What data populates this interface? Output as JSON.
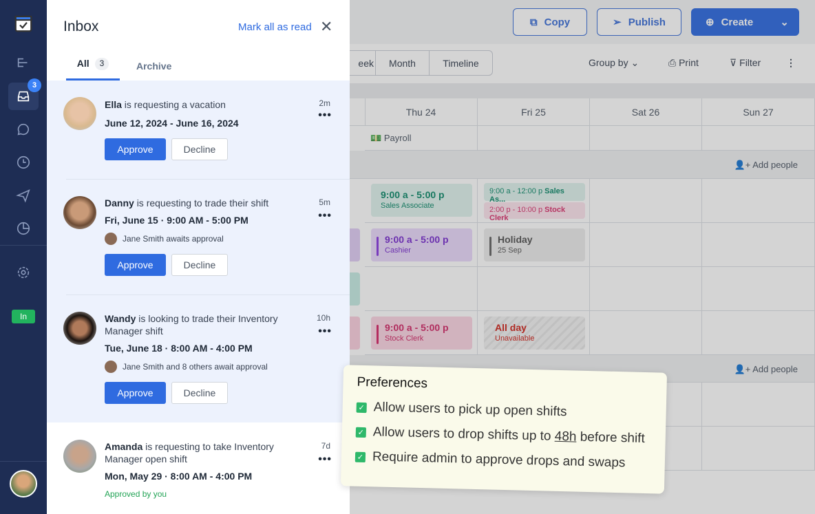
{
  "sidebar": {
    "inbox_badge": "3",
    "status_label": "In",
    "items": [
      "schedule",
      "inbox",
      "chat",
      "time-clock",
      "time-off",
      "reports",
      "settings"
    ]
  },
  "topbar": {
    "copy": "Copy",
    "publish": "Publish",
    "create": "Create"
  },
  "toolbar": {
    "views": [
      "eek",
      "Month",
      "Timeline"
    ],
    "group_by": "Group by",
    "print": "Print",
    "filter": "Filter"
  },
  "calendar": {
    "days": [
      "Thu 24",
      "Fri 25",
      "Sat 26",
      "Sun 27"
    ],
    "payroll": "Payroll",
    "add_people": "Add people",
    "shifts": {
      "thu_sales": {
        "time": "9:00 a - 5:00 p",
        "role": "Sales Associate"
      },
      "fri_sales": {
        "time": "9:00 a - 12:00 p",
        "role": "Sales As..."
      },
      "fri_stock": {
        "time": "2:00 p - 10:00 p",
        "role": "Stock Clerk"
      },
      "thu_cashier": {
        "time": "9:00 a - 5:00 p",
        "role": "Cashier"
      },
      "fri_holiday": {
        "time": "Holiday",
        "role": "25 Sep"
      },
      "thu_stock": {
        "time": "9:00 a - 5:00 p",
        "role": "Stock Clerk"
      },
      "fri_unavail": {
        "time": "All day",
        "role": "Unavailable"
      }
    }
  },
  "inbox": {
    "title": "Inbox",
    "mark_all": "Mark all as read",
    "tabs": [
      {
        "label": "All",
        "count": "3"
      },
      {
        "label": "Archive"
      }
    ],
    "items": [
      {
        "name": "Ella",
        "text": "is requesting a vacation",
        "date": "June 12, 2024 - June 16, 2024",
        "time": "2m",
        "approve": "Approve",
        "decline": "Decline"
      },
      {
        "name": "Danny",
        "text": "is requesting to trade their shift",
        "date": "Fri, June 15 · 9:00 AM - 5:00 PM",
        "awaits": "Jane Smith awaits approval",
        "time": "5m",
        "approve": "Approve",
        "decline": "Decline"
      },
      {
        "name": "Wandy",
        "text": " is looking to trade their Inventory Manager shift",
        "date": "Tue, June 18 · 8:00 AM - 4:00 PM",
        "awaits": "Jane Smith and 8 others await approval",
        "time": "10h",
        "approve": "Approve",
        "decline": "Decline"
      },
      {
        "name": "Amanda",
        "text": "is requesting to take Inventory Manager open shift",
        "date": "Mon, May 29 · 8:00 AM - 4:00 PM",
        "status": "Approved by you",
        "time": "7d"
      }
    ]
  },
  "preferences": {
    "title": "Preferences",
    "options": [
      {
        "label": "Allow users to pick up open shifts",
        "checked": true
      },
      {
        "pre": "Allow users to drop shifts up to ",
        "hours": "48h",
        "post": " before shift",
        "checked": true
      },
      {
        "label": "Require admin to approve drops and swaps",
        "checked": true
      }
    ]
  }
}
